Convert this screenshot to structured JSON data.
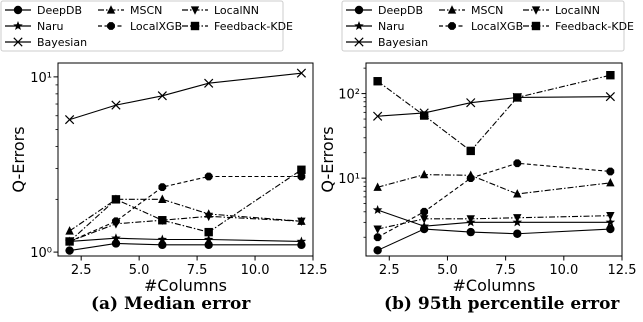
{
  "captions": {
    "left": "(a) Median error",
    "right": "(b) 95th percentile error"
  },
  "legend": {
    "entries": [
      {
        "name": "DeepDB",
        "marker": "circle",
        "dash": "solid"
      },
      {
        "name": "MSCN",
        "marker": "triangle-up",
        "dash": "dashdot"
      },
      {
        "name": "LocalNN",
        "marker": "triangle-down",
        "dash": "dashdot"
      },
      {
        "name": "Naru",
        "marker": "star",
        "dash": "solid"
      },
      {
        "name": "LocalXGB",
        "marker": "octagon",
        "dash": "dashed"
      },
      {
        "name": "Feedback-KDE",
        "marker": "square",
        "dash": "dashdot"
      },
      {
        "name": "Bayesian",
        "marker": "x",
        "dash": "solid"
      }
    ]
  },
  "chart_data": [
    {
      "type": "line",
      "title": "(a) Median error",
      "xlabel": "#Columns",
      "ylabel": "Q-Errors",
      "yscale": "log",
      "xlim": [
        1.5,
        12.5
      ],
      "ylim": [
        0.95,
        12
      ],
      "xticks": [
        2.5,
        5.0,
        7.5,
        10.0,
        12.5
      ],
      "xtick_labels": [
        "2.5",
        "5.0",
        "7.5",
        "10.0",
        "12.5"
      ],
      "yticks": [
        1,
        10
      ],
      "ytick_labels": [
        "10⁰",
        "10¹"
      ],
      "x": [
        2,
        4,
        6,
        8,
        12
      ],
      "series": [
        {
          "name": "DeepDB",
          "values": [
            1.02,
            1.12,
            1.1,
            1.1,
            1.1
          ]
        },
        {
          "name": "MSCN",
          "values": [
            1.32,
            2.0,
            2.0,
            1.65,
            1.5
          ]
        },
        {
          "name": "LocalNN",
          "values": [
            1.15,
            1.45,
            1.52,
            1.6,
            1.5
          ]
        },
        {
          "name": "Naru",
          "values": [
            1.15,
            1.2,
            1.18,
            1.18,
            1.15
          ]
        },
        {
          "name": "LocalXGB",
          "values": [
            1.15,
            1.5,
            2.35,
            2.7,
            2.7
          ]
        },
        {
          "name": "Feedback-KDE",
          "values": [
            1.15,
            2.0,
            1.52,
            1.3,
            2.95
          ]
        },
        {
          "name": "Bayesian",
          "values": [
            5.7,
            6.9,
            7.8,
            9.2,
            10.5
          ]
        }
      ]
    },
    {
      "type": "line",
      "title": "(b) 95th percentile error",
      "xlabel": "#Columns",
      "ylabel": "Q-Errors",
      "yscale": "log",
      "xlim": [
        1.5,
        12.5
      ],
      "ylim": [
        1.2,
        230
      ],
      "xticks": [
        2.5,
        5.0,
        7.5,
        10.0,
        12.5
      ],
      "xtick_labels": [
        "2.5",
        "5.0",
        "7.5",
        "10.0",
        "12.5"
      ],
      "yticks": [
        10,
        100
      ],
      "ytick_labels": [
        "10¹",
        "10²"
      ],
      "x": [
        2,
        4,
        6,
        8,
        12
      ],
      "series": [
        {
          "name": "DeepDB",
          "values": [
            1.4,
            2.5,
            2.3,
            2.2,
            2.5
          ]
        },
        {
          "name": "MSCN",
          "values": [
            7.8,
            11.0,
            10.8,
            6.5,
            8.8
          ]
        },
        {
          "name": "LocalNN",
          "values": [
            2.5,
            3.3,
            3.3,
            3.4,
            3.6
          ]
        },
        {
          "name": "Naru",
          "values": [
            4.2,
            2.7,
            3.0,
            3.0,
            3.0
          ]
        },
        {
          "name": "LocalXGB",
          "values": [
            2.0,
            4.0,
            10.0,
            15.0,
            12.0
          ]
        },
        {
          "name": "Feedback-KDE",
          "values": [
            140,
            55,
            21,
            90,
            165
          ]
        },
        {
          "name": "Bayesian",
          "values": [
            54,
            59,
            78,
            90,
            92
          ]
        }
      ]
    }
  ]
}
